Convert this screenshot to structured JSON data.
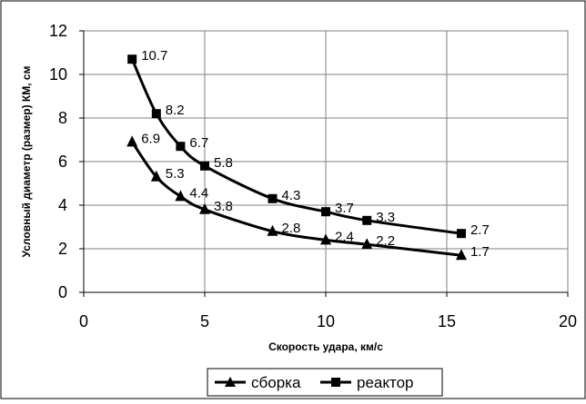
{
  "chart_data": {
    "type": "line",
    "title": "",
    "xlabel": "Скорость удара, км/с",
    "ylabel": "Условный диаметр (размер) КМ, см",
    "xlim": [
      0,
      20
    ],
    "ylim": [
      0,
      12
    ],
    "x_ticks": [
      0,
      5,
      10,
      15,
      20
    ],
    "y_ticks": [
      0,
      2,
      4,
      6,
      8,
      10,
      12
    ],
    "grid": true,
    "legend_position": "bottom",
    "series": [
      {
        "name": "сборка",
        "marker": "triangle",
        "color": "#000000",
        "x": [
          2,
          3,
          4,
          5,
          7.8,
          10,
          11.7,
          15.6
        ],
        "y": [
          6.9,
          5.3,
          4.4,
          3.8,
          2.8,
          2.4,
          2.2,
          1.7
        ],
        "labels": [
          "6.9",
          "5.3",
          "4.4",
          "3.8",
          "2.8",
          "2.4",
          "2.2",
          "1.7"
        ]
      },
      {
        "name": "реактор",
        "marker": "square",
        "color": "#000000",
        "x": [
          2,
          3,
          4,
          5,
          7.8,
          10,
          11.7,
          15.6
        ],
        "y": [
          10.7,
          8.2,
          6.7,
          5.8,
          4.3,
          3.7,
          3.3,
          2.7
        ],
        "labels": [
          "10.7",
          "8.2",
          "6.7",
          "5.8",
          "4.3",
          "3.7",
          "3.3",
          "2.7"
        ]
      }
    ]
  }
}
